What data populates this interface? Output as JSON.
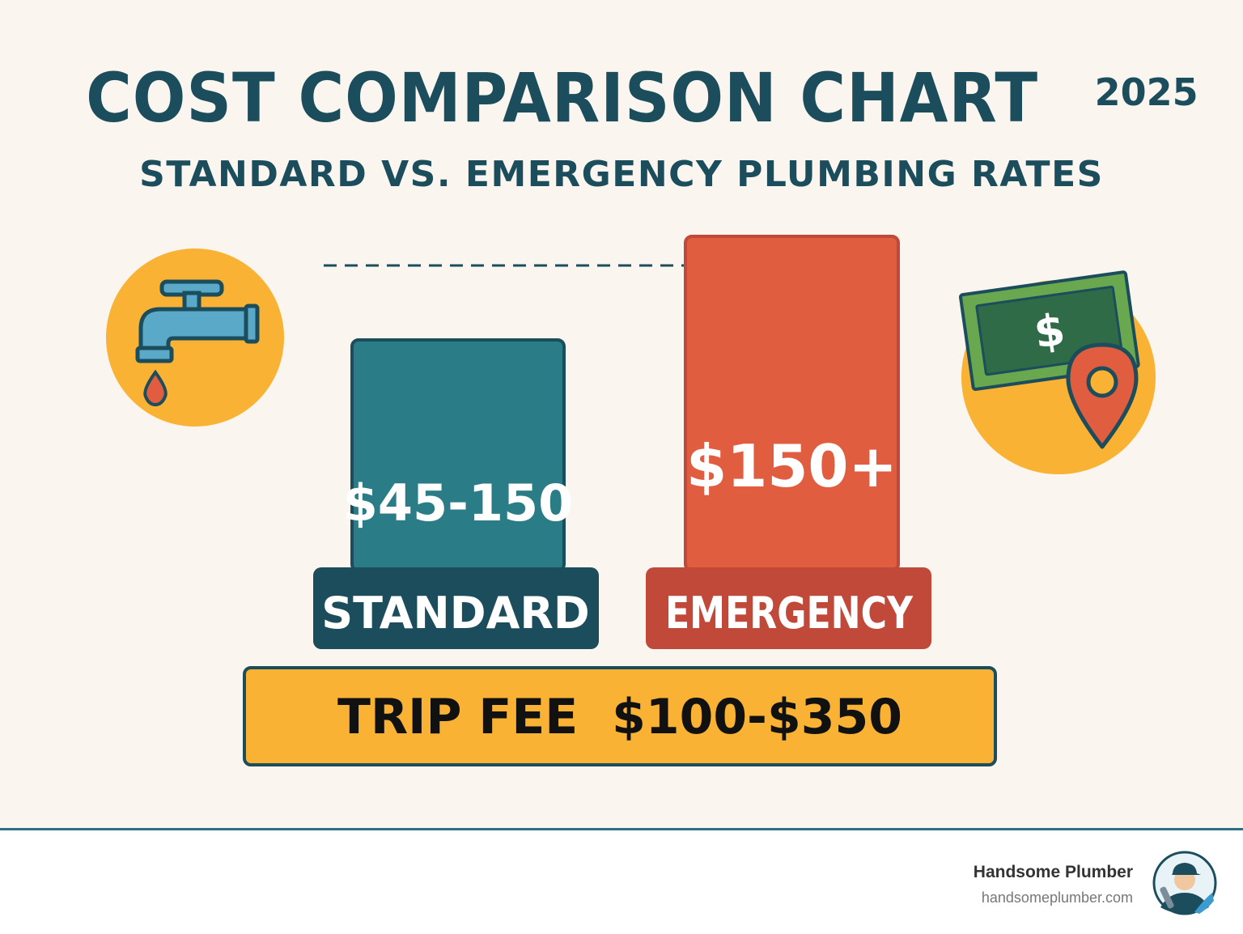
{
  "header": {
    "title": "COST COMPARISON CHART",
    "year": "2025",
    "subtitle": "STANDARD VS. EMERGENCY PLUMBING RATES"
  },
  "chart_data": {
    "type": "bar",
    "categories": [
      "STANDARD",
      "EMERGENCY"
    ],
    "values": [
      150,
      150
    ],
    "value_labels": [
      "$45-150",
      "$150+"
    ],
    "note": "TRIP FEE  $100-$350",
    "colors": {
      "standard_bar": "#2a7d86",
      "standard_label": "#1c4d5c",
      "emergency_bar": "#e05d40",
      "emergency_label": "#c0493a",
      "trip_fee": "#f9b233"
    }
  },
  "icons": {
    "left": "faucet-icon",
    "right": "money-location-icon"
  },
  "footer": {
    "brand_name": "Handsome Plumber",
    "brand_url": "handsomeplumber.com"
  }
}
